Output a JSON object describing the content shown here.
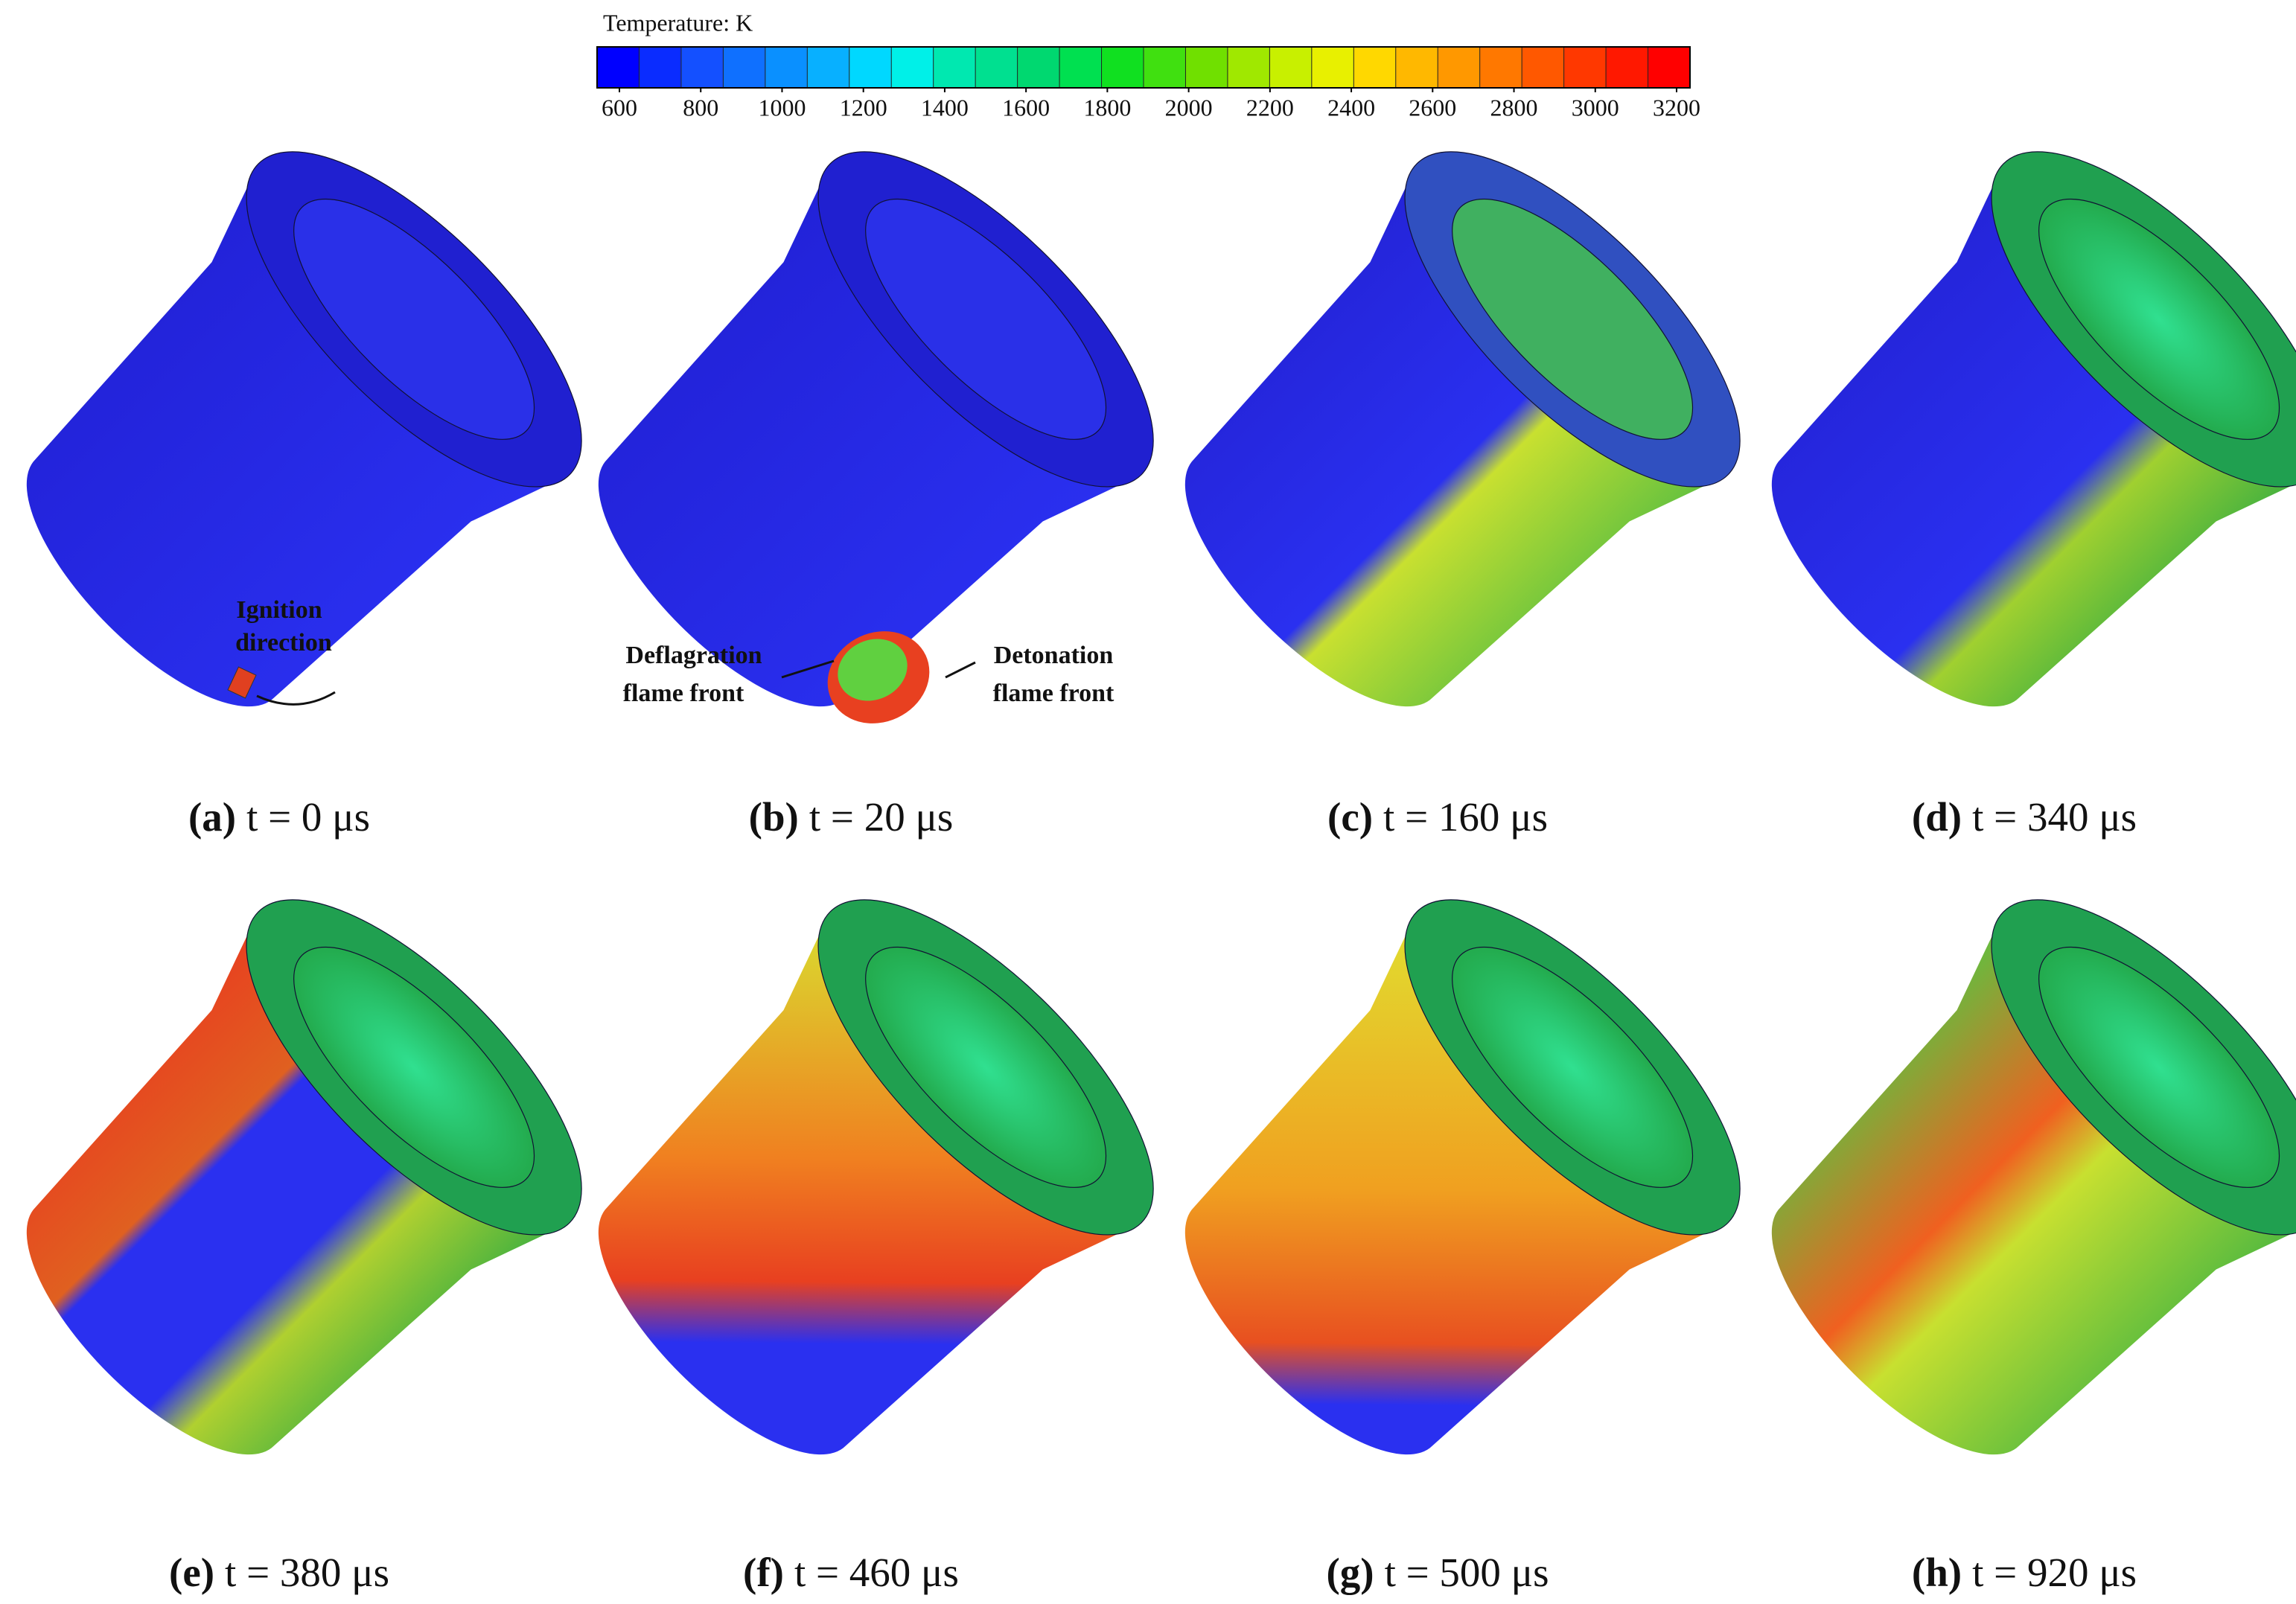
{
  "colorbar": {
    "title": "Temperature: K",
    "ticks": [
      600,
      800,
      1000,
      1200,
      1400,
      1600,
      1800,
      2000,
      2200,
      2400,
      2600,
      2800,
      3000,
      3200
    ],
    "colors": [
      "#0000ff",
      "#0a2cff",
      "#1450ff",
      "#0f70ff",
      "#0a90ff",
      "#08b0ff",
      "#00d8ff",
      "#00f0e8",
      "#00e8b0",
      "#00e090",
      "#00d870",
      "#00e050",
      "#10e020",
      "#40e010",
      "#70e000",
      "#a0e800",
      "#c8f000",
      "#e8f000",
      "#ffd800",
      "#ffb800",
      "#ff9800",
      "#ff7800",
      "#ff5800",
      "#ff3800",
      "#ff1800",
      "#ff0000"
    ]
  },
  "panels": [
    {
      "letter": "(a)",
      "time": "t = 0 μs"
    },
    {
      "letter": "(b)",
      "time": "t = 20 μs"
    },
    {
      "letter": "(c)",
      "time": "t = 160 μs"
    },
    {
      "letter": "(d)",
      "time": "t = 340 μs"
    },
    {
      "letter": "(e)",
      "time": "t = 380 μs"
    },
    {
      "letter": "(f)",
      "time": "t = 460 μs"
    },
    {
      "letter": "(g)",
      "time": "t = 500 μs"
    },
    {
      "letter": "(h)",
      "time": "t = 920 μs"
    }
  ],
  "annotations": {
    "ignition": [
      "Ignition",
      "direction"
    ],
    "deflagration": [
      "Deflagration",
      "flame front"
    ],
    "detonation": [
      "Detonation",
      "flame front"
    ]
  }
}
